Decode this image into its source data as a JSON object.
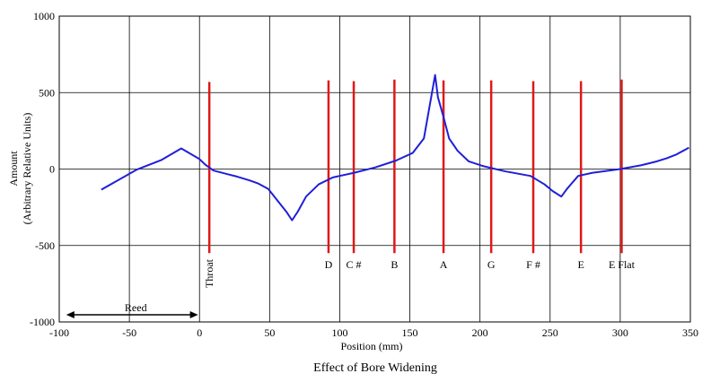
{
  "chart_data": {
    "type": "line",
    "title": "Effect of Bore Widening",
    "xlabel": "Position (mm)",
    "ylabel_line1": "Amount",
    "ylabel_line2": "(Arbitrary Relative Units)",
    "xlim": [
      -100,
      350
    ],
    "ylim": [
      -1000,
      1000
    ],
    "x_ticks": [
      -100,
      -50,
      0,
      50,
      100,
      150,
      200,
      250,
      300,
      350
    ],
    "y_ticks": [
      -1000,
      -500,
      0,
      500,
      1000
    ],
    "grid": true,
    "series": [
      {
        "color": "#1f1fd8",
        "x": [
          -70,
          -45,
          -27,
          -13,
          0,
          4,
          10,
          27,
          36,
          42,
          49,
          62,
          66,
          70,
          76,
          85,
          95,
          110,
          125,
          140,
          152,
          160,
          168,
          170,
          174,
          178,
          184,
          192,
          202,
          218,
          236,
          246,
          252,
          258,
          262,
          270,
          280,
          300,
          315,
          326,
          333,
          340,
          349
        ],
        "y": [
          -135,
          -5,
          60,
          135,
          65,
          30,
          -10,
          -50,
          -75,
          -95,
          -130,
          -280,
          -335,
          -280,
          -180,
          -100,
          -55,
          -25,
          10,
          55,
          105,
          200,
          615,
          470,
          340,
          200,
          120,
          50,
          20,
          -15,
          -45,
          -100,
          -145,
          -180,
          -130,
          -45,
          -25,
          0,
          25,
          50,
          70,
          95,
          140
        ]
      }
    ],
    "markers": [
      {
        "label": "Throat",
        "x": 7,
        "y_top": 570,
        "y_bottom": -550,
        "vertical": true
      },
      {
        "label": "D",
        "x": 92,
        "y_top": 580,
        "y_bottom": -550
      },
      {
        "label": "C #",
        "x": 110,
        "y_top": 575,
        "y_bottom": -550
      },
      {
        "label": "B",
        "x": 139,
        "y_top": 585,
        "y_bottom": -550
      },
      {
        "label": "A",
        "x": 174,
        "y_top": 580,
        "y_bottom": -550
      },
      {
        "label": "G",
        "x": 208,
        "y_top": 580,
        "y_bottom": -550
      },
      {
        "label": "F #",
        "x": 238,
        "y_top": 575,
        "y_bottom": -550
      },
      {
        "label": "E",
        "x": 272,
        "y_top": 575,
        "y_bottom": -550
      },
      {
        "label": "E Flat",
        "x": 301,
        "y_top": 585,
        "y_bottom": -550
      }
    ],
    "reed": {
      "label": "Reed",
      "x_start": -95,
      "x_end": -1
    }
  },
  "colors": {
    "line": "#1f1fd8",
    "markers": "#e01818",
    "grid": "#000000"
  }
}
